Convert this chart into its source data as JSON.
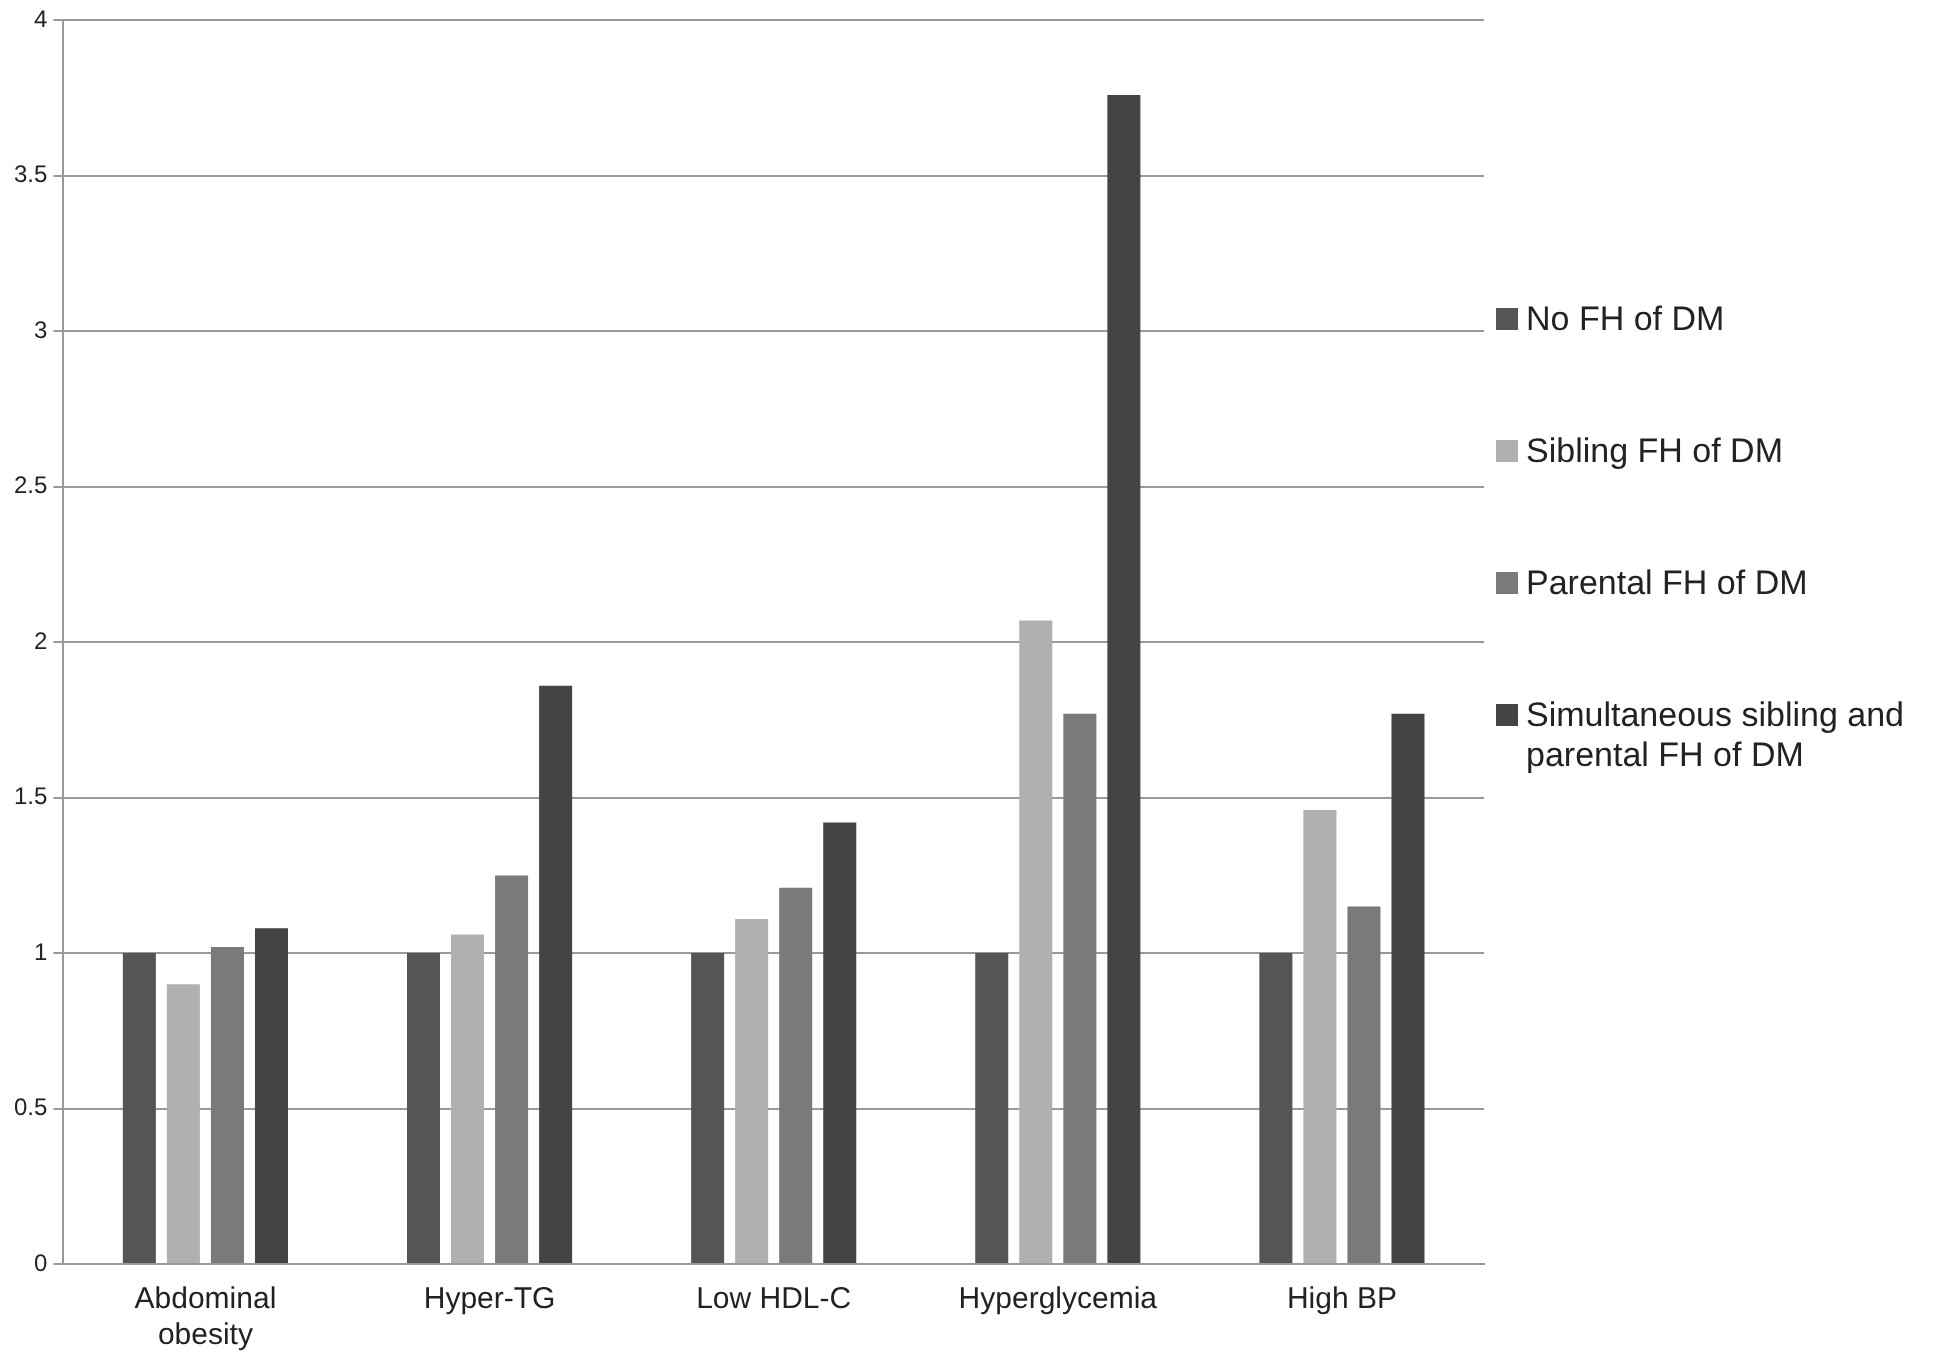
{
  "chart_data": {
    "type": "bar",
    "categories": [
      "Abdominal obesity",
      "Hyper-TG",
      "Low HDL-C",
      "Hyperglycemia",
      "High BP"
    ],
    "series": [
      {
        "name": "No FH of DM",
        "color": "#555555",
        "values": [
          1,
          1,
          1,
          1,
          1
        ]
      },
      {
        "name": "Sibling FH of DM",
        "color": "#b0b0b0",
        "values": [
          0.9,
          1.06,
          1.11,
          2.07,
          1.46
        ]
      },
      {
        "name": "Parental FH of DM",
        "color": "#7a7a7a",
        "values": [
          1.02,
          1.25,
          1.21,
          1.77,
          1.15
        ]
      },
      {
        "name": "Simultaneous sibling and parental FH of DM",
        "color": "#444444",
        "values": [
          1.08,
          1.86,
          1.42,
          3.76,
          1.77
        ]
      }
    ],
    "ylim": [
      0,
      4
    ],
    "yticks": [
      0,
      0.5,
      1,
      1.5,
      2,
      2.5,
      3,
      3.5,
      4
    ],
    "grid": "y",
    "legend": "right"
  }
}
